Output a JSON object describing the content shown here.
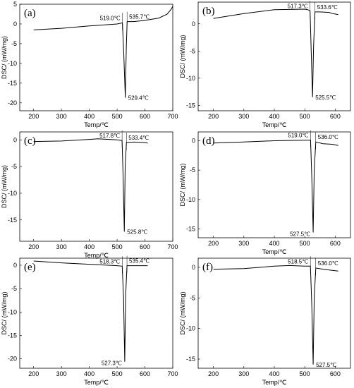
{
  "figure": {
    "panels": [
      {
        "label": "(a)"
      },
      {
        "label": "(b)"
      },
      {
        "label": "(c)"
      },
      {
        "label": "(d)"
      },
      {
        "label": "(e)"
      },
      {
        "label": "(f)"
      }
    ]
  },
  "chart_data": [
    {
      "type": "line",
      "panel": "(a)",
      "xlabel": "Temp/℃",
      "ylabel": "DSC/ (mW/mg)",
      "xlim": [
        150,
        700
      ],
      "ylim": [
        -22,
        5
      ],
      "xticks": [
        200,
        300,
        400,
        500,
        600,
        700
      ],
      "yticks": [
        5,
        0,
        -5,
        -10,
        -15,
        -20
      ],
      "series": [
        {
          "x": [
            200,
            300,
            400,
            500,
            515,
            519,
            524,
            529.4,
            533,
            536,
            560,
            600,
            650,
            680,
            695,
            700
          ],
          "y": [
            -1.5,
            -1.1,
            -0.5,
            0.0,
            0.2,
            0.3,
            -8,
            -18.7,
            -6,
            0.6,
            0.6,
            0.9,
            1.5,
            2.5,
            3.8,
            4.5
          ]
        }
      ],
      "annotations": [
        {
          "text": "519.0℃",
          "x": 519.0,
          "y": 0.3,
          "pos": "left"
        },
        {
          "text": "535.7℃",
          "x": 535.7,
          "y": 0.6,
          "pos": "right"
        },
        {
          "text": "529.4℃",
          "x": 529.4,
          "y": -18.7,
          "pos": "bottom-right"
        }
      ]
    },
    {
      "type": "line",
      "panel": "(b)",
      "xlabel": "Temp/℃",
      "ylabel": "DSC/ (mW/mg)",
      "xlim": [
        150,
        650
      ],
      "ylim": [
        -16,
        4
      ],
      "xticks": [
        200,
        300,
        400,
        500,
        600
      ],
      "yticks": [
        0,
        -5,
        -10,
        -15
      ],
      "series": [
        {
          "x": [
            200,
            300,
            400,
            500,
            510,
            517.3,
            521,
            525.5,
            529,
            533.6,
            550,
            580,
            590,
            600,
            610
          ],
          "y": [
            1.0,
            1.9,
            2.6,
            2.7,
            2.6,
            2.4,
            -5,
            -13.5,
            -4,
            2.2,
            2.2,
            2.1,
            1.9,
            1.8,
            1.7
          ]
        }
      ],
      "annotations": [
        {
          "text": "517.3℃",
          "x": 517.3,
          "y": 2.4,
          "pos": "left"
        },
        {
          "text": "533.6℃",
          "x": 533.6,
          "y": 2.2,
          "pos": "right"
        },
        {
          "text": "525.5℃",
          "x": 525.5,
          "y": -13.5,
          "pos": "bottom-right"
        }
      ]
    },
    {
      "type": "line",
      "panel": "(c)",
      "xlabel": "Temp/℃",
      "ylabel": "DSC/ (mW/mg)",
      "xlim": [
        150,
        700
      ],
      "ylim": [
        -19,
        1.5
      ],
      "xticks": [
        200,
        300,
        400,
        500,
        600,
        700
      ],
      "yticks": [
        0,
        -5,
        -10,
        -15
      ],
      "series": [
        {
          "x": [
            200,
            300,
            400,
            430,
            500,
            517.8,
            521,
            525.8,
            529,
            533.4,
            560,
            600,
            610
          ],
          "y": [
            -0.3,
            -0.2,
            0.1,
            0.2,
            0.0,
            -0.1,
            -6,
            -17.2,
            -5,
            -0.5,
            -0.4,
            -0.5,
            -0.6
          ]
        }
      ],
      "annotations": [
        {
          "text": "517.8℃",
          "x": 517.8,
          "y": -0.1,
          "pos": "left"
        },
        {
          "text": "533.4℃",
          "x": 533.4,
          "y": -0.5,
          "pos": "right"
        },
        {
          "text": "525.8℃",
          "x": 525.8,
          "y": -17.2,
          "pos": "bottom-right"
        }
      ]
    },
    {
      "type": "line",
      "panel": "(d)",
      "xlabel": "Temp/℃",
      "ylabel": "DSC/ (mW/mg)",
      "xlim": [
        150,
        650
      ],
      "ylim": [
        -16.5,
        1.5
      ],
      "xticks": [
        200,
        300,
        400,
        500,
        600
      ],
      "yticks": [
        0,
        -5,
        -10,
        -15
      ],
      "series": [
        {
          "x": [
            200,
            300,
            400,
            500,
            519.0,
            523,
            527.5,
            531,
            536.0,
            560,
            590,
            610
          ],
          "y": [
            -0.4,
            -0.2,
            0.0,
            0.1,
            0.1,
            -6,
            -15.6,
            -5,
            -0.2,
            -0.5,
            -0.6,
            -0.8
          ]
        }
      ],
      "annotations": [
        {
          "text": "519.0℃",
          "x": 519.0,
          "y": 0.1,
          "pos": "left"
        },
        {
          "text": "536.0℃",
          "x": 536.0,
          "y": -0.2,
          "pos": "right"
        },
        {
          "text": "527.5℃",
          "x": 527.5,
          "y": -15.6,
          "pos": "bottom-left"
        }
      ]
    },
    {
      "type": "line",
      "panel": "(e)",
      "xlabel": "Temp/℃",
      "ylabel": "DSC/ (mW/mg)",
      "xlim": [
        150,
        700
      ],
      "ylim": [
        -22,
        1.5
      ],
      "xticks": [
        200,
        300,
        400,
        500,
        600,
        700
      ],
      "yticks": [
        0,
        -5,
        -10,
        -15,
        -20
      ],
      "series": [
        {
          "x": [
            200,
            300,
            400,
            500,
            518.3,
            523,
            527.3,
            531,
            535.4,
            560,
            600,
            610
          ],
          "y": [
            0.9,
            0.5,
            0.2,
            -0.1,
            -0.2,
            -7,
            -20.6,
            -6,
            -0.1,
            -0.1,
            -0.1,
            -0.1
          ]
        }
      ],
      "annotations": [
        {
          "text": "518.3℃",
          "x": 518.3,
          "y": -0.2,
          "pos": "left"
        },
        {
          "text": "535.4℃",
          "x": 535.4,
          "y": -0.1,
          "pos": "right"
        },
        {
          "text": "527.3℃",
          "x": 527.3,
          "y": -20.6,
          "pos": "bottom-left"
        }
      ]
    },
    {
      "type": "line",
      "panel": "(f)",
      "xlabel": "Temp/℃",
      "ylabel": "DSC/ (mW/mg)",
      "xlim": [
        150,
        650
      ],
      "ylim": [
        -16.5,
        1.5
      ],
      "xticks": [
        200,
        300,
        400,
        500,
        600
      ],
      "yticks": [
        0,
        -5,
        -10,
        -15
      ],
      "series": [
        {
          "x": [
            200,
            300,
            400,
            450,
            500,
            518.5,
            523,
            527.5,
            531,
            536.0,
            560,
            590,
            610
          ],
          "y": [
            -0.3,
            -0.2,
            0.2,
            0.3,
            0.2,
            0.2,
            -6,
            -15.9,
            -5,
            -0.1,
            -0.3,
            -0.5,
            -0.6
          ]
        }
      ],
      "annotations": [
        {
          "text": "518.5℃",
          "x": 518.5,
          "y": 0.2,
          "pos": "left"
        },
        {
          "text": "536.0℃",
          "x": 536.0,
          "y": -0.1,
          "pos": "right"
        },
        {
          "text": "527.5℃",
          "x": 527.5,
          "y": -15.9,
          "pos": "bottom-right"
        }
      ]
    }
  ]
}
